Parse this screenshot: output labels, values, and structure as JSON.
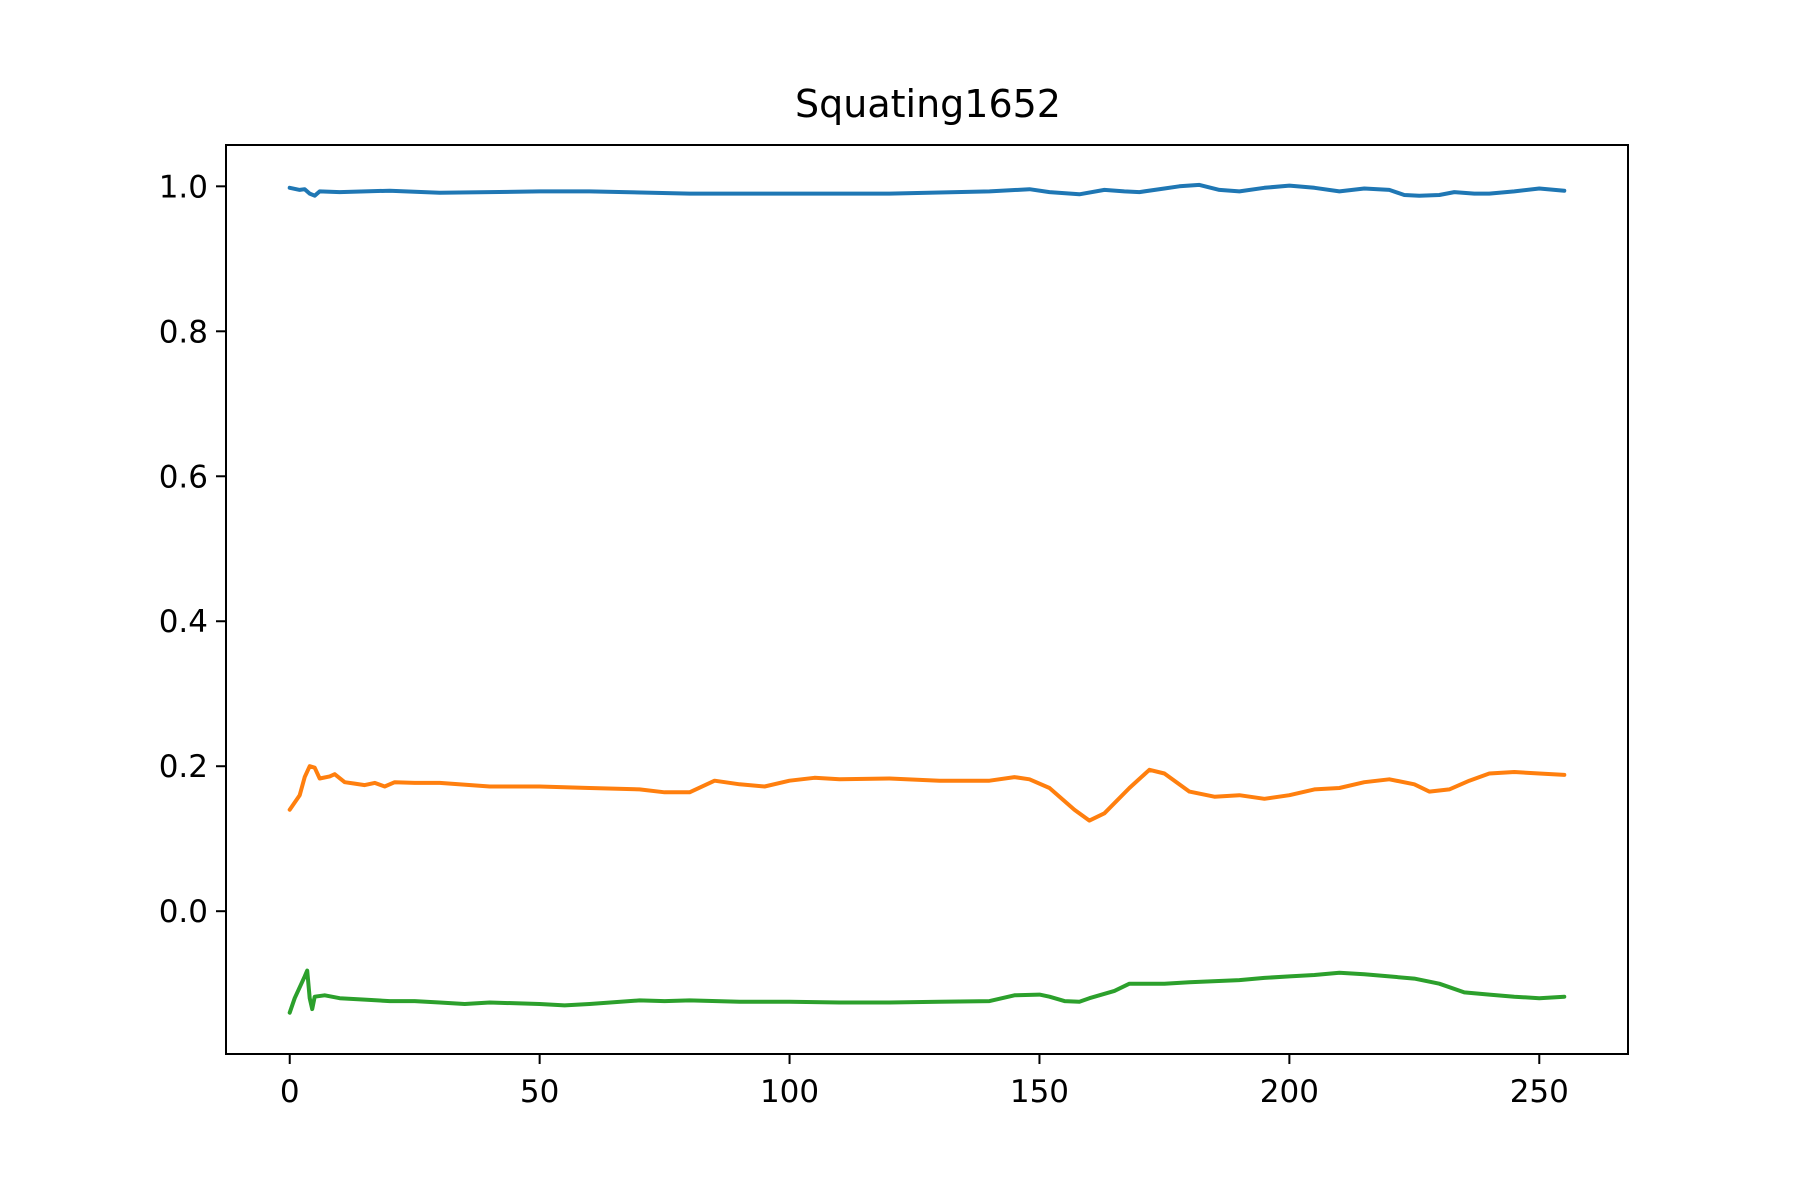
{
  "chart_data": {
    "type": "line",
    "title": "Squating1652",
    "xlabel": "",
    "ylabel": "",
    "xlim": [
      -12.75,
      267.75
    ],
    "ylim": [
      -0.197,
      1.057
    ],
    "x_ticks": [
      0,
      50,
      100,
      150,
      200,
      250
    ],
    "y_ticks": [
      0.0,
      0.2,
      0.4,
      0.6,
      0.8,
      1.0
    ],
    "x_tick_labels": [
      "0",
      "50",
      "100",
      "150",
      "200",
      "250"
    ],
    "y_tick_labels": [
      "0.0",
      "0.2",
      "0.4",
      "0.6",
      "0.8",
      "1.0"
    ],
    "grid": false,
    "legend": "none",
    "series": [
      {
        "color": "#1f77b4",
        "points": [
          [
            0,
            0.998
          ],
          [
            2,
            0.995
          ],
          [
            3,
            0.996
          ],
          [
            4,
            0.99
          ],
          [
            5,
            0.987
          ],
          [
            6,
            0.993
          ],
          [
            10,
            0.992
          ],
          [
            20,
            0.994
          ],
          [
            30,
            0.991
          ],
          [
            50,
            0.993
          ],
          [
            60,
            0.993
          ],
          [
            80,
            0.99
          ],
          [
            100,
            0.99
          ],
          [
            120,
            0.99
          ],
          [
            140,
            0.993
          ],
          [
            148,
            0.996
          ],
          [
            152,
            0.992
          ],
          [
            158,
            0.989
          ],
          [
            163,
            0.995
          ],
          [
            167,
            0.993
          ],
          [
            170,
            0.992
          ],
          [
            175,
            0.997
          ],
          [
            178,
            1.0
          ],
          [
            182,
            1.002
          ],
          [
            186,
            0.995
          ],
          [
            190,
            0.993
          ],
          [
            195,
            0.998
          ],
          [
            200,
            1.001
          ],
          [
            205,
            0.998
          ],
          [
            210,
            0.993
          ],
          [
            215,
            0.997
          ],
          [
            220,
            0.995
          ],
          [
            223,
            0.988
          ],
          [
            226,
            0.987
          ],
          [
            230,
            0.988
          ],
          [
            233,
            0.992
          ],
          [
            237,
            0.99
          ],
          [
            240,
            0.99
          ],
          [
            245,
            0.993
          ],
          [
            250,
            0.997
          ],
          [
            255,
            0.994
          ]
        ]
      },
      {
        "color": "#ff7f0e",
        "points": [
          [
            0,
            0.14
          ],
          [
            2,
            0.16
          ],
          [
            3,
            0.185
          ],
          [
            4,
            0.2
          ],
          [
            5,
            0.198
          ],
          [
            6,
            0.183
          ],
          [
            8,
            0.186
          ],
          [
            9,
            0.189
          ],
          [
            11,
            0.178
          ],
          [
            13,
            0.176
          ],
          [
            15,
            0.174
          ],
          [
            17,
            0.177
          ],
          [
            19,
            0.172
          ],
          [
            21,
            0.178
          ],
          [
            25,
            0.177
          ],
          [
            30,
            0.177
          ],
          [
            40,
            0.172
          ],
          [
            50,
            0.172
          ],
          [
            60,
            0.17
          ],
          [
            70,
            0.168
          ],
          [
            75,
            0.164
          ],
          [
            80,
            0.164
          ],
          [
            85,
            0.18
          ],
          [
            90,
            0.175
          ],
          [
            95,
            0.172
          ],
          [
            100,
            0.18
          ],
          [
            105,
            0.184
          ],
          [
            110,
            0.182
          ],
          [
            120,
            0.183
          ],
          [
            130,
            0.18
          ],
          [
            140,
            0.18
          ],
          [
            145,
            0.185
          ],
          [
            148,
            0.182
          ],
          [
            152,
            0.17
          ],
          [
            157,
            0.14
          ],
          [
            160,
            0.125
          ],
          [
            163,
            0.135
          ],
          [
            168,
            0.17
          ],
          [
            172,
            0.195
          ],
          [
            175,
            0.19
          ],
          [
            180,
            0.165
          ],
          [
            185,
            0.158
          ],
          [
            190,
            0.16
          ],
          [
            195,
            0.155
          ],
          [
            200,
            0.16
          ],
          [
            205,
            0.168
          ],
          [
            210,
            0.17
          ],
          [
            215,
            0.178
          ],
          [
            220,
            0.182
          ],
          [
            225,
            0.175
          ],
          [
            228,
            0.165
          ],
          [
            232,
            0.168
          ],
          [
            236,
            0.18
          ],
          [
            240,
            0.19
          ],
          [
            245,
            0.192
          ],
          [
            250,
            0.19
          ],
          [
            255,
            0.188
          ]
        ]
      },
      {
        "color": "#2ca02c",
        "points": [
          [
            0,
            -0.14
          ],
          [
            1,
            -0.12
          ],
          [
            2,
            -0.105
          ],
          [
            3,
            -0.09
          ],
          [
            3.5,
            -0.082
          ],
          [
            4,
            -0.12
          ],
          [
            4.5,
            -0.135
          ],
          [
            5,
            -0.118
          ],
          [
            7,
            -0.116
          ],
          [
            10,
            -0.12
          ],
          [
            15,
            -0.122
          ],
          [
            20,
            -0.124
          ],
          [
            25,
            -0.124
          ],
          [
            30,
            -0.126
          ],
          [
            35,
            -0.128
          ],
          [
            40,
            -0.126
          ],
          [
            50,
            -0.128
          ],
          [
            55,
            -0.13
          ],
          [
            60,
            -0.128
          ],
          [
            70,
            -0.123
          ],
          [
            75,
            -0.124
          ],
          [
            80,
            -0.123
          ],
          [
            90,
            -0.125
          ],
          [
            100,
            -0.125
          ],
          [
            110,
            -0.126
          ],
          [
            120,
            -0.126
          ],
          [
            130,
            -0.125
          ],
          [
            140,
            -0.124
          ],
          [
            145,
            -0.116
          ],
          [
            150,
            -0.115
          ],
          [
            152,
            -0.118
          ],
          [
            155,
            -0.124
          ],
          [
            158,
            -0.125
          ],
          [
            160,
            -0.12
          ],
          [
            165,
            -0.11
          ],
          [
            168,
            -0.1
          ],
          [
            175,
            -0.1
          ],
          [
            180,
            -0.098
          ],
          [
            190,
            -0.095
          ],
          [
            195,
            -0.092
          ],
          [
            200,
            -0.09
          ],
          [
            205,
            -0.088
          ],
          [
            210,
            -0.085
          ],
          [
            215,
            -0.087
          ],
          [
            220,
            -0.09
          ],
          [
            225,
            -0.093
          ],
          [
            230,
            -0.1
          ],
          [
            235,
            -0.112
          ],
          [
            240,
            -0.115
          ],
          [
            245,
            -0.118
          ],
          [
            250,
            -0.12
          ],
          [
            255,
            -0.118
          ]
        ]
      }
    ]
  }
}
